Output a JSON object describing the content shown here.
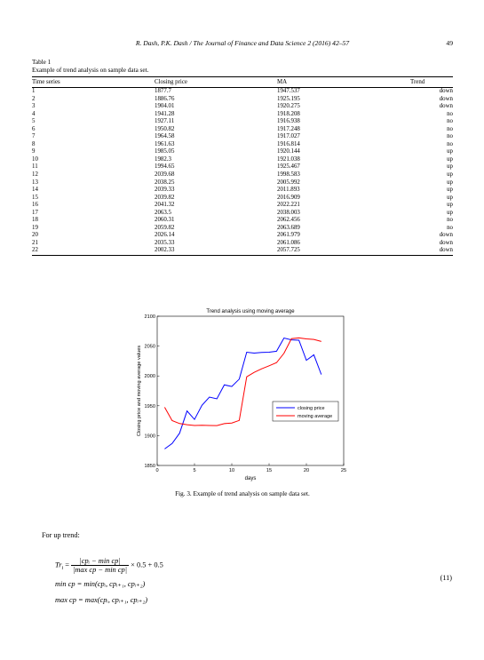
{
  "header": {
    "authors": "R. Dash, P.K. Dash / The Journal of Finance and Data Science 2 (2016) 42–57",
    "page_number": "49"
  },
  "table": {
    "label": "Table 1",
    "caption": "Example of trend analysis on sample data set.",
    "columns": [
      "Time series",
      "Closing price",
      "MA",
      "Trend"
    ],
    "rows": [
      [
        "1",
        "1877.7",
        "1947.537",
        "down"
      ],
      [
        "2",
        "1886.76",
        "1925.195",
        "down"
      ],
      [
        "3",
        "1904.01",
        "1920.275",
        "down"
      ],
      [
        "4",
        "1941.28",
        "1918.208",
        "no"
      ],
      [
        "5",
        "1927.11",
        "1916.938",
        "no"
      ],
      [
        "6",
        "1950.82",
        "1917.248",
        "no"
      ],
      [
        "7",
        "1964.58",
        "1917.027",
        "no"
      ],
      [
        "8",
        "1961.63",
        "1916.814",
        "no"
      ],
      [
        "9",
        "1985.05",
        "1920.144",
        "up"
      ],
      [
        "10",
        "1982.3",
        "1921.038",
        "up"
      ],
      [
        "11",
        "1994.65",
        "1925.467",
        "up"
      ],
      [
        "12",
        "2039.68",
        "1998.583",
        "up"
      ],
      [
        "13",
        "2038.25",
        "2005.992",
        "up"
      ],
      [
        "14",
        "2039.33",
        "2011.893",
        "up"
      ],
      [
        "15",
        "2039.82",
        "2016.909",
        "up"
      ],
      [
        "16",
        "2041.32",
        "2022.221",
        "up"
      ],
      [
        "17",
        "2063.5",
        "2038.003",
        "up"
      ],
      [
        "18",
        "2060.31",
        "2062.456",
        "no"
      ],
      [
        "19",
        "2059.82",
        "2063.689",
        "no"
      ],
      [
        "20",
        "2026.14",
        "2061.979",
        "down"
      ],
      [
        "21",
        "2035.33",
        "2061.086",
        "down"
      ],
      [
        "22",
        "2002.33",
        "2057.725",
        "down"
      ]
    ]
  },
  "chart_data": {
    "type": "line",
    "title": "Trend analysis using moving average",
    "xlabel": "days",
    "ylabel": "Closing price and moving average values",
    "xlim": [
      0,
      25
    ],
    "ylim": [
      1850,
      2100
    ],
    "xticks": [
      "0",
      "5",
      "10",
      "15",
      "20",
      "25"
    ],
    "yticks": [
      "1850",
      "1900",
      "1950",
      "2000",
      "2050",
      "2100"
    ],
    "legend_position": "right",
    "x": [
      1,
      2,
      3,
      4,
      5,
      6,
      7,
      8,
      9,
      10,
      11,
      12,
      13,
      14,
      15,
      16,
      17,
      18,
      19,
      20,
      21,
      22
    ],
    "series": [
      {
        "name": "closing price",
        "color": "#0000ff",
        "values": [
          1877.7,
          1886.76,
          1904.01,
          1941.28,
          1927.11,
          1950.82,
          1964.58,
          1961.63,
          1985.05,
          1982.3,
          1994.65,
          2039.68,
          2038.25,
          2039.33,
          2039.82,
          2041.32,
          2063.5,
          2060.31,
          2059.82,
          2026.14,
          2035.33,
          2002.33
        ]
      },
      {
        "name": "moving average",
        "color": "#ff0000",
        "values": [
          1947.537,
          1925.195,
          1920.275,
          1918.208,
          1916.938,
          1917.248,
          1917.027,
          1916.814,
          1920.144,
          1921.038,
          1925.467,
          1998.583,
          2005.992,
          2011.893,
          2016.909,
          2022.221,
          2038.003,
          2062.456,
          2063.689,
          2061.979,
          2061.086,
          2057.725
        ]
      }
    ]
  },
  "figure": {
    "caption": "Fig. 3. Example of trend analysis on sample data set."
  },
  "body": {
    "paragraph": "For up trend:",
    "eq_lhs": "Tr",
    "eq_sub_i": "i",
    "eq_equals": "=",
    "eq_numerator": "|cpᵢ − min cp|",
    "eq_denominator": "|max cp − min cp|",
    "eq_tail": "× 0.5 + 0.5",
    "eq_min": "min cp = min(cpᵢ, cpᵢ₊₁, cpᵢ₊₂)",
    "eq_max": "max cp = max(cpᵢ, cpᵢ₊₁, cpᵢ₊₂)",
    "eq_number": "(11)"
  }
}
